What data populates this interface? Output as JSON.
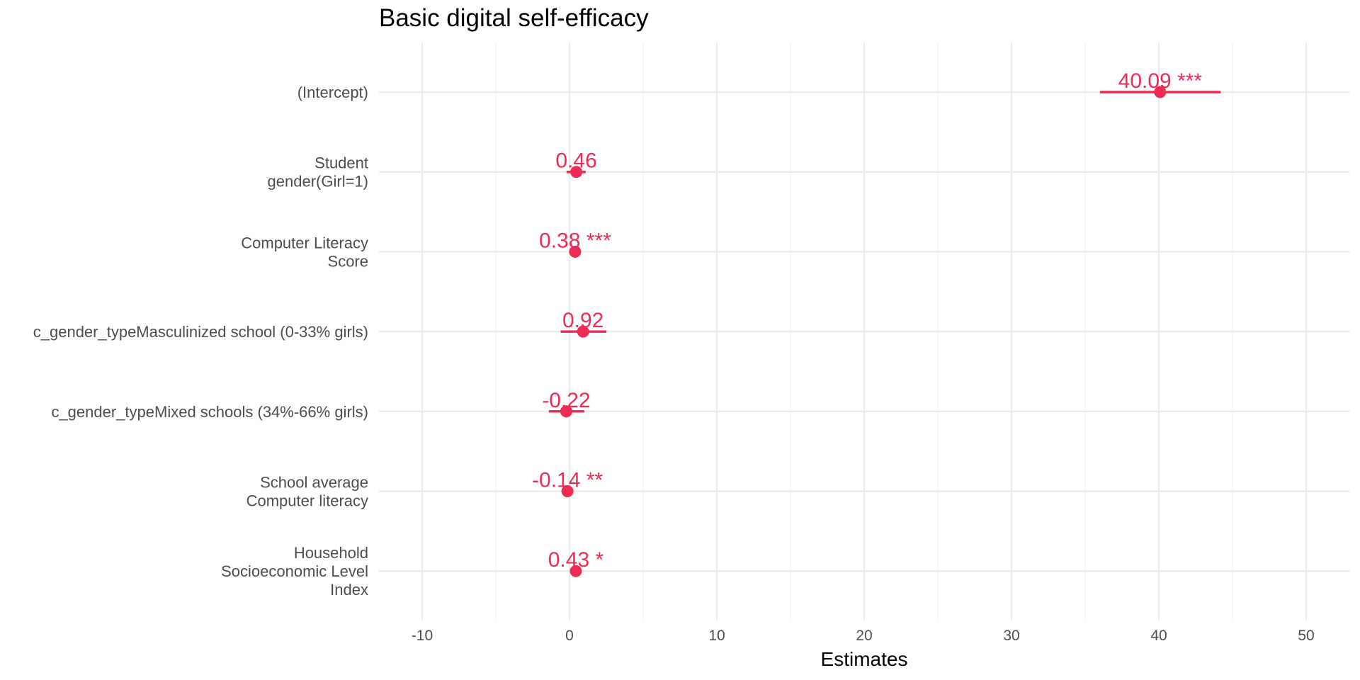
{
  "chart_data": {
    "type": "forest",
    "title": "Basic digital self-efficacy",
    "xlabel": "Estimates",
    "xlim": [
      -13,
      52
    ],
    "x_ticks": [
      -10,
      0,
      10,
      20,
      30,
      40,
      50
    ],
    "x_tick_labels": [
      "-10",
      "0",
      "10",
      "20",
      "30",
      "40",
      "50"
    ],
    "grid": true,
    "color": "#ee2c53",
    "terms": [
      {
        "label": [
          "(Intercept)"
        ],
        "estimate": 40.09,
        "ci": [
          36.0,
          44.2
        ],
        "text": "40.09 ***"
      },
      {
        "label": [
          "Student",
          "gender(Girl=1)"
        ],
        "estimate": 0.46,
        "ci": [
          -0.2,
          1.1
        ],
        "text": "0.46"
      },
      {
        "label": [
          "Computer Literacy",
          "Score"
        ],
        "estimate": 0.38,
        "ci": [
          0.28,
          0.48
        ],
        "text": "0.38 ***"
      },
      {
        "label": [
          "c_gender_typeMasculinized school (0-33% girls)"
        ],
        "estimate": 0.92,
        "ci": [
          -0.6,
          2.5
        ],
        "text": "0.92"
      },
      {
        "label": [
          "c_gender_typeMixed schools (34%-66% girls)"
        ],
        "estimate": -0.22,
        "ci": [
          -1.4,
          1.0
        ],
        "text": "-0.22"
      },
      {
        "label": [
          "School average",
          "Computer literacy"
        ],
        "estimate": -0.14,
        "ci": [
          -0.23,
          -0.05
        ],
        "text": "-0.14 **"
      },
      {
        "label": [
          "Household",
          "Socioeconomic Level",
          "Index"
        ],
        "estimate": 0.43,
        "ci": [
          0.1,
          0.76
        ],
        "text": "0.43 *"
      }
    ]
  }
}
